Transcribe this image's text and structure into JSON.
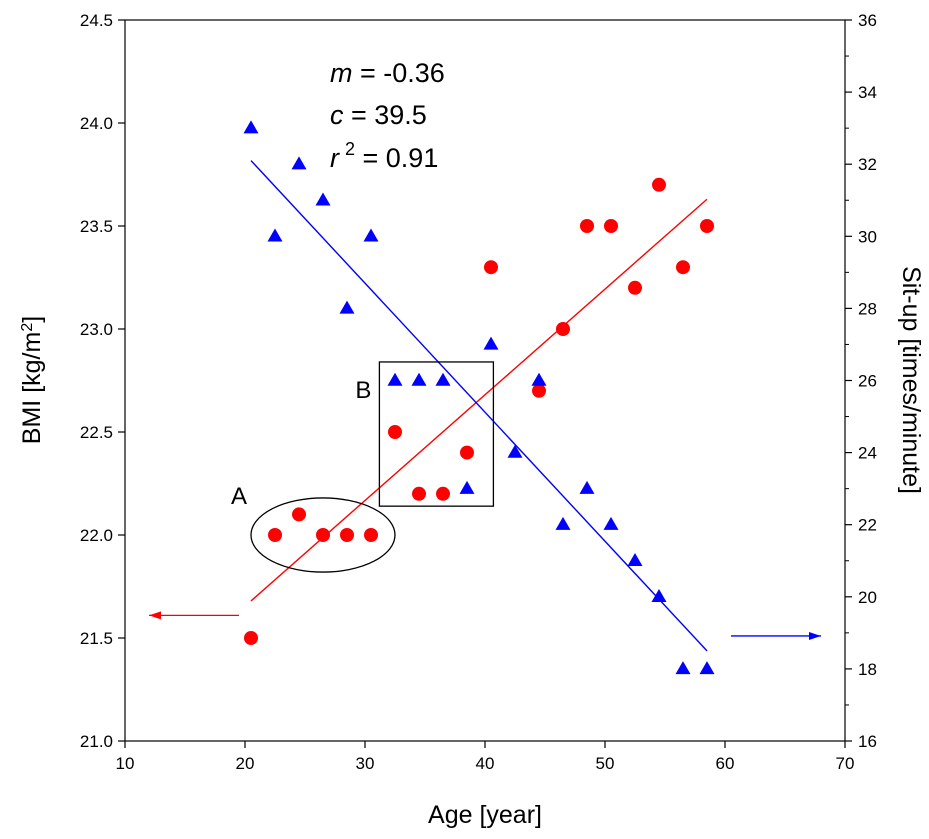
{
  "chart_data": {
    "type": "scatter",
    "xlabel": "Age [year]",
    "ylabel_left": "BMI [kg/m²]",
    "ylabel_right": "Sit-up [times/minute]",
    "xlim": [
      10,
      70
    ],
    "ylim_left": [
      21.0,
      24.5
    ],
    "ylim_right": [
      16,
      36
    ],
    "x_ticks": [
      "10",
      "20",
      "30",
      "40",
      "50",
      "60",
      "70"
    ],
    "y_left_ticks": [
      "21.0",
      "21.5",
      "22.0",
      "22.5",
      "23.0",
      "23.5",
      "24.0",
      "24.5"
    ],
    "y_right_ticks": [
      "16",
      "18",
      "20",
      "22",
      "24",
      "26",
      "28",
      "30",
      "32",
      "34",
      "36"
    ],
    "grid": false,
    "series": [
      {
        "marker": "circle",
        "axis": "left",
        "color": "#ff0000",
        "points": [
          {
            "x": 20.5,
            "y": 21.5
          },
          {
            "x": 22.5,
            "y": 22.0
          },
          {
            "x": 24.5,
            "y": 22.1
          },
          {
            "x": 26.5,
            "y": 22.0
          },
          {
            "x": 28.5,
            "y": 22.0
          },
          {
            "x": 30.5,
            "y": 22.0
          },
          {
            "x": 32.5,
            "y": 22.5
          },
          {
            "x": 34.5,
            "y": 22.2
          },
          {
            "x": 36.5,
            "y": 22.2
          },
          {
            "x": 38.5,
            "y": 22.4
          },
          {
            "x": 40.5,
            "y": 23.3
          },
          {
            "x": 44.5,
            "y": 22.7
          },
          {
            "x": 46.5,
            "y": 23.0
          },
          {
            "x": 48.5,
            "y": 23.5
          },
          {
            "x": 50.5,
            "y": 23.5
          },
          {
            "x": 52.5,
            "y": 23.2
          },
          {
            "x": 54.5,
            "y": 23.7
          },
          {
            "x": 56.5,
            "y": 23.3
          },
          {
            "x": 58.5,
            "y": 23.5
          }
        ],
        "fit_line": {
          "x": [
            20.5,
            58.5
          ],
          "y": [
            21.68,
            23.63
          ]
        }
      },
      {
        "marker": "triangle",
        "axis": "right",
        "color": "#0000ff",
        "points": [
          {
            "x": 20.5,
            "y": 33.0
          },
          {
            "x": 22.5,
            "y": 30.0
          },
          {
            "x": 24.5,
            "y": 32.0
          },
          {
            "x": 26.5,
            "y": 31.0
          },
          {
            "x": 28.5,
            "y": 28.0
          },
          {
            "x": 30.5,
            "y": 30.0
          },
          {
            "x": 32.5,
            "y": 26.0
          },
          {
            "x": 34.5,
            "y": 26.0
          },
          {
            "x": 36.5,
            "y": 26.0
          },
          {
            "x": 38.5,
            "y": 23.0
          },
          {
            "x": 40.5,
            "y": 27.0
          },
          {
            "x": 42.5,
            "y": 24.0
          },
          {
            "x": 44.5,
            "y": 26.0
          },
          {
            "x": 46.5,
            "y": 22.0
          },
          {
            "x": 48.5,
            "y": 23.0
          },
          {
            "x": 50.5,
            "y": 22.0
          },
          {
            "x": 52.5,
            "y": 21.0
          },
          {
            "x": 54.5,
            "y": 20.0
          },
          {
            "x": 56.5,
            "y": 18.0
          },
          {
            "x": 58.5,
            "y": 18.0
          }
        ],
        "fit_line": {
          "x": [
            20.5,
            58.5
          ],
          "y": [
            32.1,
            18.5
          ]
        }
      }
    ],
    "stats": {
      "m_symbol": "m",
      "m_value": " = -0.36",
      "c_symbol": "c",
      "c_value": " = 39.5",
      "r_symbol": "r",
      "r_sup": "2",
      "r_value": " = 0.91"
    },
    "annotations": [
      {
        "label": "A",
        "shape": "ellipse",
        "center": {
          "x": 26.5,
          "y": 22.0
        },
        "rx": 6.0,
        "ry": 0.18
      },
      {
        "label": "B",
        "shape": "rect",
        "x": [
          31.2,
          40.7
        ],
        "y": [
          22.14,
          22.84
        ]
      }
    ],
    "arrows": [
      {
        "name": "left-axis-arrow",
        "direction": "left",
        "color": "#ff0000",
        "x": [
          19.5,
          12.0
        ],
        "y_left": 21.61
      },
      {
        "name": "right-axis-arrow",
        "direction": "right",
        "color": "#0000ff",
        "x": [
          60.5,
          68.0
        ],
        "y_left": 21.51
      }
    ]
  }
}
